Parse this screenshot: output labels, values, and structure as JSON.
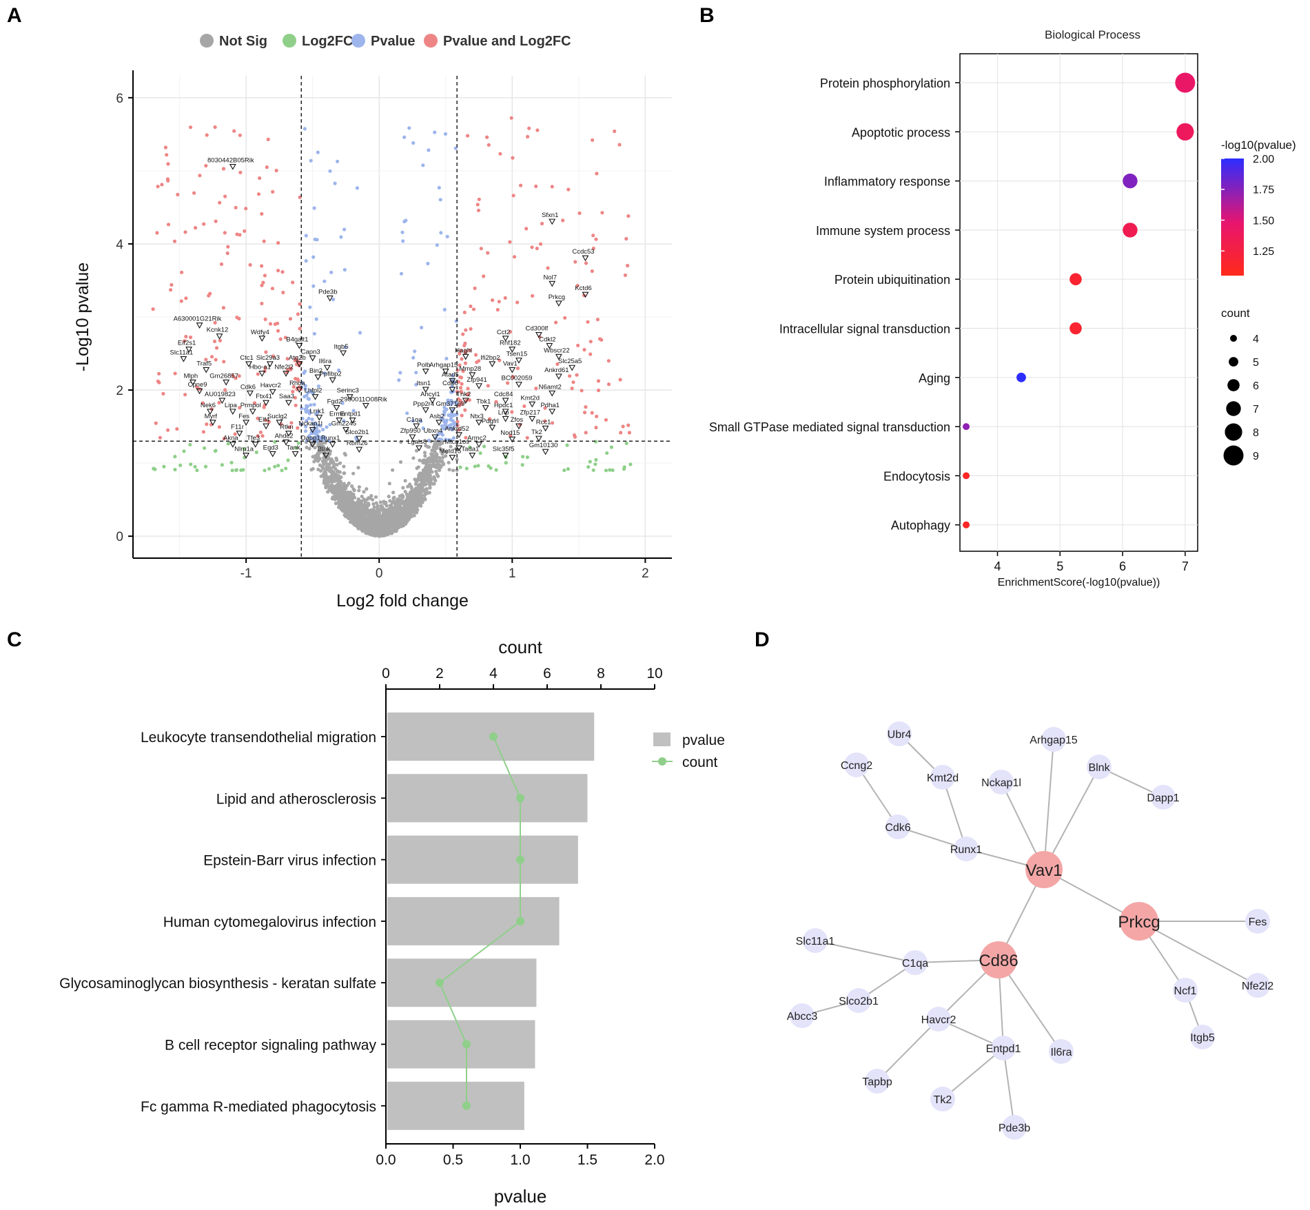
{
  "figure": {
    "panel_letters": [
      "A",
      "B",
      "C",
      "D"
    ]
  },
  "chart_data": [
    {
      "panel": "A",
      "type": "scatter",
      "subtype": "volcano",
      "xlabel": "Log2 fold change",
      "ylabel": "-Log10 pvalue",
      "xlim": [
        -1.85,
        2.2
      ],
      "ylim": [
        -0.3,
        6.3
      ],
      "xticks": [
        -1,
        0,
        1,
        2
      ],
      "yticks": [
        0,
        2,
        4,
        6
      ],
      "grid": true,
      "legend_position": "top",
      "legend": [
        {
          "label": "Not Sig",
          "color": "#a6a6a6"
        },
        {
          "label": "Log2FC",
          "color": "#8fcf8a"
        },
        {
          "label": "Pvalue",
          "color": "#9db5ec"
        },
        {
          "label": "Pvalue and Log2FC",
          "color": "#ee8585"
        }
      ],
      "thresholds": {
        "log2fc": [
          -0.585,
          0.585
        ],
        "neg_log10_p": 1.3
      },
      "labeled_genes": [
        {
          "gene": "8030442B05Rik",
          "x": -1.1,
          "y": 5.05
        },
        {
          "gene": "A630001G21Rik",
          "x": -1.35,
          "y": 2.88
        },
        {
          "gene": "Kcnk12",
          "x": -1.2,
          "y": 2.73
        },
        {
          "gene": "Eif2s1",
          "x": -1.43,
          "y": 2.55
        },
        {
          "gene": "Slc11a1",
          "x": -1.47,
          "y": 2.42
        },
        {
          "gene": "Traf5",
          "x": -1.3,
          "y": 2.27
        },
        {
          "gene": "Mlph",
          "x": -1.4,
          "y": 2.1
        },
        {
          "gene": "Gm26857",
          "x": -1.15,
          "y": 2.1
        },
        {
          "gene": "Cpne9",
          "x": -1.35,
          "y": 1.98
        },
        {
          "gene": "AU019823",
          "x": -1.18,
          "y": 1.85
        },
        {
          "gene": "Nek6",
          "x": -1.27,
          "y": 1.7
        },
        {
          "gene": "Lipa",
          "x": -1.1,
          "y": 1.7
        },
        {
          "gene": "Myrf",
          "x": -1.25,
          "y": 1.55
        },
        {
          "gene": "Fes",
          "x": -1.0,
          "y": 1.55
        },
        {
          "gene": "F11r",
          "x": -1.05,
          "y": 1.4
        },
        {
          "gene": "Akna",
          "x": -1.1,
          "y": 1.25
        },
        {
          "gene": "Nlrp1a",
          "x": -1.0,
          "y": 1.1
        },
        {
          "gene": "Wdfy4",
          "x": -0.88,
          "y": 2.7
        },
        {
          "gene": "B4galt1",
          "x": -0.6,
          "y": 2.6
        },
        {
          "gene": "Ctc1",
          "x": -0.98,
          "y": 2.35
        },
        {
          "gene": "Slc29a3",
          "x": -0.82,
          "y": 2.35
        },
        {
          "gene": "Atg2b",
          "x": -0.6,
          "y": 2.35
        },
        {
          "gene": "Hbo-a1",
          "x": -0.88,
          "y": 2.22
        },
        {
          "gene": "Nfe2l2",
          "x": -0.7,
          "y": 2.22
        },
        {
          "gene": "Havcr2",
          "x": -0.8,
          "y": 1.97
        },
        {
          "gene": "Rhoa",
          "x": -0.6,
          "y": 2.0
        },
        {
          "gene": "Cdk6",
          "x": -0.97,
          "y": 1.95
        },
        {
          "gene": "Ftx41",
          "x": -0.85,
          "y": 1.82
        },
        {
          "gene": "Saa3",
          "x": -0.68,
          "y": 1.82
        },
        {
          "gene": "Prmpol",
          "x": -0.95,
          "y": 1.7
        },
        {
          "gene": "Suclg2",
          "x": -0.75,
          "y": 1.55
        },
        {
          "gene": "Elf4",
          "x": -0.85,
          "y": 1.5
        },
        {
          "gene": "Tfe3",
          "x": -0.93,
          "y": 1.25
        },
        {
          "gene": "Egd3",
          "x": -0.8,
          "y": 1.12
        },
        {
          "gene": "Rtkn",
          "x": -0.68,
          "y": 1.4
        },
        {
          "gene": "Ahdc2",
          "x": -0.7,
          "y": 1.28
        },
        {
          "gene": "Tank",
          "x": -0.63,
          "y": 1.12
        },
        {
          "gene": "Capn3",
          "x": -0.5,
          "y": 2.43
        },
        {
          "gene": "Il6ra",
          "x": -0.39,
          "y": 2.3
        },
        {
          "gene": "Bin2",
          "x": -0.46,
          "y": 2.17
        },
        {
          "gene": "Ppfibp2",
          "x": -0.35,
          "y": 2.13
        },
        {
          "gene": "Itgb5",
          "x": -0.27,
          "y": 2.5
        },
        {
          "gene": "Pde3b",
          "x": -0.37,
          "y": 3.25
        },
        {
          "gene": "Lhfpl2",
          "x": -0.48,
          "y": 1.9
        },
        {
          "gene": "Serinc3",
          "x": -0.22,
          "y": 1.9
        },
        {
          "gene": "Fgd2",
          "x": -0.32,
          "y": 1.75
        },
        {
          "gene": "Lrrk1",
          "x": -0.45,
          "y": 1.62
        },
        {
          "gene": "Ermn",
          "x": -0.3,
          "y": 1.58
        },
        {
          "gene": "Entpd1",
          "x": -0.2,
          "y": 1.58
        },
        {
          "gene": "Gm2245",
          "x": -0.25,
          "y": 1.45
        },
        {
          "gene": "Nckap1l",
          "x": -0.5,
          "y": 1.45
        },
        {
          "gene": "Dapp1",
          "x": -0.5,
          "y": 1.25
        },
        {
          "gene": "Runx1",
          "x": -0.35,
          "y": 1.25
        },
        {
          "gene": "Slco2b1",
          "x": -0.15,
          "y": 1.33
        },
        {
          "gene": "Rbm26",
          "x": -0.15,
          "y": 1.18
        },
        {
          "gene": "Blnk",
          "x": -0.4,
          "y": 1.1
        },
        {
          "gene": "2900011O08Rik",
          "x": -0.1,
          "y": 1.78
        },
        {
          "gene": "Polb",
          "x": 0.35,
          "y": 2.25
        },
        {
          "gene": "Arhgap15",
          "x": 0.5,
          "y": 2.25
        },
        {
          "gene": "Haghl",
          "x": 0.65,
          "y": 2.45
        },
        {
          "gene": "Ifi2bp2",
          "x": 0.85,
          "y": 2.35
        },
        {
          "gene": "Atad5",
          "x": 0.55,
          "y": 2.12
        },
        {
          "gene": "Mmp28",
          "x": 0.7,
          "y": 2.2
        },
        {
          "gene": "Cd86",
          "x": 0.55,
          "y": 2.0
        },
        {
          "gene": "Zfp941",
          "x": 0.75,
          "y": 2.05
        },
        {
          "gene": "Ahcyl1",
          "x": 0.4,
          "y": 1.85
        },
        {
          "gene": "Tnk2",
          "x": 0.65,
          "y": 1.85
        },
        {
          "gene": "Ppp2r4",
          "x": 0.35,
          "y": 1.72
        },
        {
          "gene": "Gm37169",
          "x": 0.55,
          "y": 1.72
        },
        {
          "gene": "Itsn1",
          "x": 0.35,
          "y": 2.0
        },
        {
          "gene": "C1qa",
          "x": 0.28,
          "y": 1.5
        },
        {
          "gene": "Asb2",
          "x": 0.45,
          "y": 1.55
        },
        {
          "gene": "Ntx3",
          "x": 0.75,
          "y": 1.55
        },
        {
          "gene": "Zfp950",
          "x": 0.25,
          "y": 1.35
        },
        {
          "gene": "Ubxn4",
          "x": 0.42,
          "y": 1.35
        },
        {
          "gene": "Ankrd52",
          "x": 0.6,
          "y": 1.38
        },
        {
          "gene": "Lgals8",
          "x": 0.3,
          "y": 1.2
        },
        {
          "gene": "Mtcn1os",
          "x": 0.6,
          "y": 1.2
        },
        {
          "gene": "Metd15",
          "x": 0.55,
          "y": 1.07
        },
        {
          "gene": "Cct2",
          "x": 0.95,
          "y": 2.7
        },
        {
          "gene": "Cd300lf",
          "x": 1.2,
          "y": 2.75
        },
        {
          "gene": "Rnf182",
          "x": 1.0,
          "y": 2.55
        },
        {
          "gene": "Cdkl2",
          "x": 1.28,
          "y": 2.6
        },
        {
          "gene": "Tsen15",
          "x": 1.05,
          "y": 2.4
        },
        {
          "gene": "Wbscr22",
          "x": 1.35,
          "y": 2.45
        },
        {
          "gene": "Slc25a5",
          "x": 1.45,
          "y": 2.3
        },
        {
          "gene": "Vav1",
          "x": 1.0,
          "y": 2.27
        },
        {
          "gene": "Ankrd61",
          "x": 1.35,
          "y": 2.18
        },
        {
          "gene": "BC002059",
          "x": 1.05,
          "y": 2.07
        },
        {
          "gene": "N6amt2",
          "x": 1.3,
          "y": 1.95
        },
        {
          "gene": "Cdc84",
          "x": 0.95,
          "y": 1.85
        },
        {
          "gene": "Kmt2d",
          "x": 1.15,
          "y": 1.8
        },
        {
          "gene": "Tbk1",
          "x": 0.8,
          "y": 1.75
        },
        {
          "gene": "Hpdc1",
          "x": 0.95,
          "y": 1.7
        },
        {
          "gene": "Pdha1",
          "x": 1.3,
          "y": 1.7
        },
        {
          "gene": "Zfp217",
          "x": 1.15,
          "y": 1.6
        },
        {
          "gene": "Lnp",
          "x": 0.95,
          "y": 1.6
        },
        {
          "gene": "Pdgfrl",
          "x": 0.85,
          "y": 1.48
        },
        {
          "gene": "Zfos",
          "x": 1.05,
          "y": 1.5
        },
        {
          "gene": "Rcc1",
          "x": 1.25,
          "y": 1.47
        },
        {
          "gene": "Nod15",
          "x": 1.0,
          "y": 1.32
        },
        {
          "gene": "Tk2",
          "x": 1.2,
          "y": 1.33
        },
        {
          "gene": "Armc2",
          "x": 0.75,
          "y": 1.25
        },
        {
          "gene": "Tada1",
          "x": 0.7,
          "y": 1.1
        },
        {
          "gene": "Slc35f5",
          "x": 0.95,
          "y": 1.1
        },
        {
          "gene": "Gm10130",
          "x": 1.25,
          "y": 1.15
        },
        {
          "gene": "Sfxn1",
          "x": 1.3,
          "y": 4.3
        },
        {
          "gene": "Ccdc53",
          "x": 1.55,
          "y": 3.8
        },
        {
          "gene": "Nol7",
          "x": 1.3,
          "y": 3.45
        },
        {
          "gene": "Kctd6",
          "x": 1.55,
          "y": 3.3
        },
        {
          "gene": "Prkcg",
          "x": 1.35,
          "y": 3.18
        }
      ]
    },
    {
      "panel": "B",
      "type": "scatter",
      "subtype": "dot-enrichment",
      "title": "Biological Process",
      "xlabel": "EnrichmentScore(-log10(pvalue))",
      "xlim": [
        3.4,
        7.2
      ],
      "xticks": [
        4,
        5,
        6,
        7
      ],
      "grid": true,
      "categories": [
        "Protein phosphorylation",
        "Apoptotic process",
        "Inflammatory response",
        "Immune system process",
        "Protein ubiquitination",
        "Intracellular signal transduction",
        "Aging",
        "Small GTPase mediated signal transduction",
        "Endocytosis",
        "Autophagy"
      ],
      "x": [
        7.0,
        7.0,
        6.12,
        6.12,
        5.25,
        5.25,
        4.38,
        3.5,
        3.5,
        3.5
      ],
      "count": [
        9,
        8,
        7,
        7,
        6,
        6,
        5,
        4,
        4,
        4
      ],
      "neg_log10_pvalue": [
        1.4,
        1.35,
        1.75,
        1.3,
        1.15,
        1.15,
        2.0,
        1.7,
        1.1,
        1.1
      ],
      "colorbar": {
        "title": "-log10(pvalue)",
        "range": [
          1.05,
          2.0
        ],
        "ticks": [
          "2.00",
          "1.75",
          "1.50",
          "1.25"
        ],
        "low_color": "#ff2a1a",
        "mid_color": "#e8156e",
        "high_color": "#2d2dff"
      },
      "size_legend": {
        "title": "count",
        "values": [
          4,
          5,
          6,
          7,
          8,
          9
        ]
      }
    },
    {
      "panel": "C",
      "type": "bar",
      "subtype": "horizontal bar with count line",
      "categories": [
        "Leukocyte transendothelial migration",
        "Lipid and atherosclerosis",
        "Epstein-Barr virus infection",
        "Human cytomegalovirus infection",
        "Glycosaminoglycan biosynthesis - keratan sulfate",
        "B cell receptor signaling pathway",
        "Fc gamma R-mediated phagocytosis"
      ],
      "series": [
        {
          "name": "pvalue",
          "values": [
            1.55,
            1.5,
            1.43,
            1.29,
            1.12,
            1.11,
            1.03
          ],
          "color": "#c0c0c0"
        },
        {
          "name": "count",
          "values": [
            4,
            5,
            5,
            5,
            2,
            3,
            3
          ],
          "color": "#8fcf8a"
        }
      ],
      "top_axis": {
        "label": "count",
        "range": [
          0,
          10
        ],
        "ticks": [
          0,
          2,
          4,
          6,
          8,
          10
        ]
      },
      "bottom_axis": {
        "label": "pvalue",
        "range": [
          0,
          2
        ],
        "ticks": [
          "0.0",
          "0.5",
          "1.0",
          "1.5",
          "2.0"
        ]
      },
      "legend_position": "right"
    },
    {
      "panel": "D",
      "type": "network",
      "hub_nodes": [
        "Vav1",
        "Prkcg",
        "Cd86"
      ],
      "nodes": [
        "Vav1",
        "Prkcg",
        "Cd86",
        "Ubr4",
        "Ccng2",
        "Kmt2d",
        "Nckap1l",
        "Arhgap15",
        "Blnk",
        "Dapp1",
        "Cdk6",
        "Runx1",
        "Fes",
        "Nfe2l2",
        "Ncf1",
        "Itgb5",
        "Slc11a1",
        "C1qa",
        "Slco2b1",
        "Abcc3",
        "Havcr2",
        "Tapbp",
        "Entpd1",
        "Tk2",
        "Pde3b",
        "Il6ra"
      ],
      "edges": [
        [
          "Vav1",
          "Runx1"
        ],
        [
          "Vav1",
          "Nckap1l"
        ],
        [
          "Vav1",
          "Arhgap15"
        ],
        [
          "Vav1",
          "Blnk"
        ],
        [
          "Vav1",
          "Prkcg"
        ],
        [
          "Vav1",
          "Cd86"
        ],
        [
          "Runx1",
          "Kmt2d"
        ],
        [
          "Runx1",
          "Cdk6"
        ],
        [
          "Kmt2d",
          "Ubr4"
        ],
        [
          "Cdk6",
          "Ccng2"
        ],
        [
          "Blnk",
          "Dapp1"
        ],
        [
          "Prkcg",
          "Fes"
        ],
        [
          "Prkcg",
          "Nfe2l2"
        ],
        [
          "Prkcg",
          "Ncf1"
        ],
        [
          "Ncf1",
          "Itgb5"
        ],
        [
          "Cd86",
          "C1qa"
        ],
        [
          "Cd86",
          "Havcr2"
        ],
        [
          "Cd86",
          "Entpd1"
        ],
        [
          "Cd86",
          "Il6ra"
        ],
        [
          "C1qa",
          "Slc11a1"
        ],
        [
          "C1qa",
          "Slco2b1"
        ],
        [
          "Slco2b1",
          "Abcc3"
        ],
        [
          "Havcr2",
          "Tapbp"
        ],
        [
          "Havcr2",
          "Entpd1"
        ],
        [
          "Entpd1",
          "Tk2"
        ],
        [
          "Entpd1",
          "Pde3b"
        ]
      ],
      "hub_color": "#f4a6a6",
      "node_color": "#e3e3fa",
      "edge_color": "#b3b3b3"
    }
  ]
}
